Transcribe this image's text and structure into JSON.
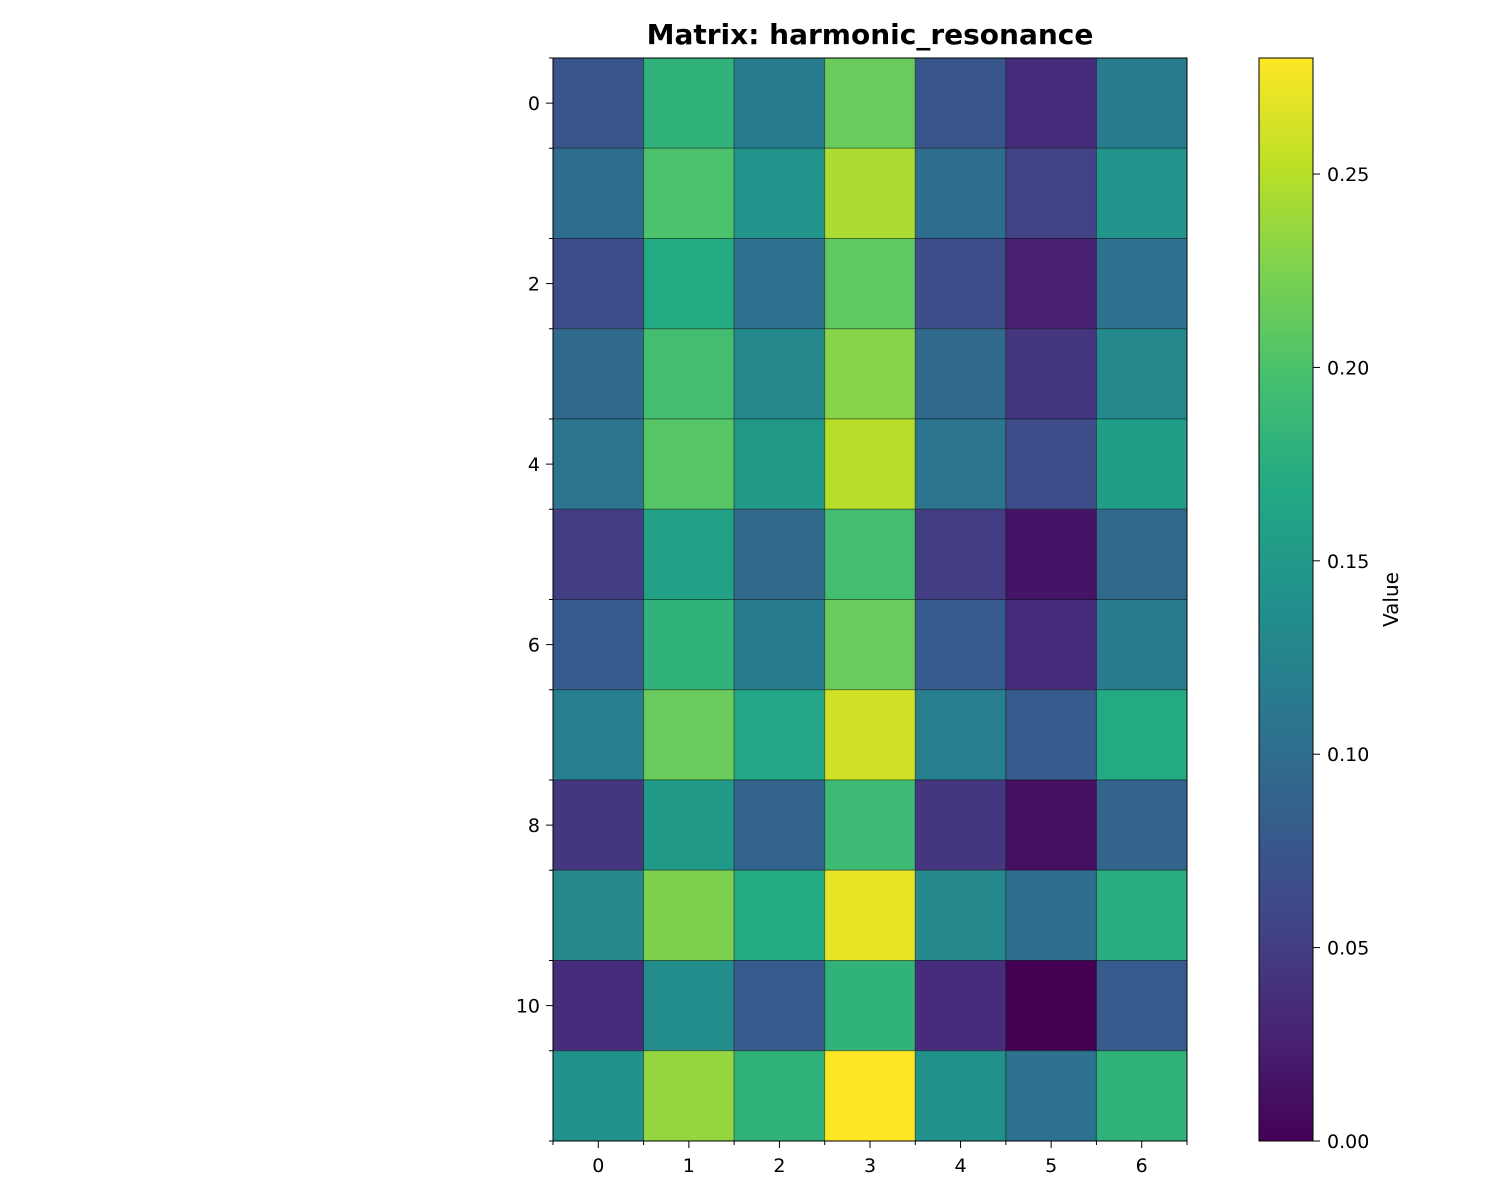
{
  "chart_data": {
    "type": "heatmap",
    "title": "Matrix: harmonic_resonance",
    "xlabel": "",
    "ylabel": "",
    "colormap": "viridis",
    "n_rows": 12,
    "n_cols": 7,
    "x_ticks": [
      "0",
      "1",
      "2",
      "3",
      "4",
      "5",
      "6"
    ],
    "y_ticks": [
      "0",
      "2",
      "4",
      "6",
      "8",
      "10"
    ],
    "y_tick_rows": [
      0,
      2,
      4,
      6,
      8,
      10
    ],
    "values": [
      [
        0.075,
        0.18,
        0.115,
        0.215,
        0.075,
        0.035,
        0.115
      ],
      [
        0.1,
        0.2,
        0.145,
        0.245,
        0.1,
        0.055,
        0.145
      ],
      [
        0.065,
        0.17,
        0.105,
        0.21,
        0.065,
        0.025,
        0.105
      ],
      [
        0.095,
        0.195,
        0.13,
        0.23,
        0.095,
        0.045,
        0.13
      ],
      [
        0.11,
        0.205,
        0.15,
        0.25,
        0.11,
        0.065,
        0.155
      ],
      [
        0.05,
        0.16,
        0.095,
        0.195,
        0.05,
        0.015,
        0.095
      ],
      [
        0.08,
        0.18,
        0.115,
        0.215,
        0.08,
        0.035,
        0.115
      ],
      [
        0.12,
        0.215,
        0.165,
        0.26,
        0.12,
        0.08,
        0.17
      ],
      [
        0.045,
        0.15,
        0.09,
        0.19,
        0.045,
        0.012,
        0.09
      ],
      [
        0.13,
        0.225,
        0.17,
        0.27,
        0.13,
        0.1,
        0.175
      ],
      [
        0.035,
        0.135,
        0.08,
        0.18,
        0.035,
        0.0,
        0.08
      ],
      [
        0.14,
        0.235,
        0.18,
        0.28,
        0.14,
        0.105,
        0.18
      ]
    ],
    "colorbar": {
      "label": "Value",
      "ticks": [
        "0.00",
        "0.05",
        "0.10",
        "0.15",
        "0.20",
        "0.25"
      ],
      "tick_values": [
        0.0,
        0.05,
        0.1,
        0.15,
        0.2,
        0.25
      ],
      "vmin": 0.0,
      "vmax": 0.28
    }
  }
}
